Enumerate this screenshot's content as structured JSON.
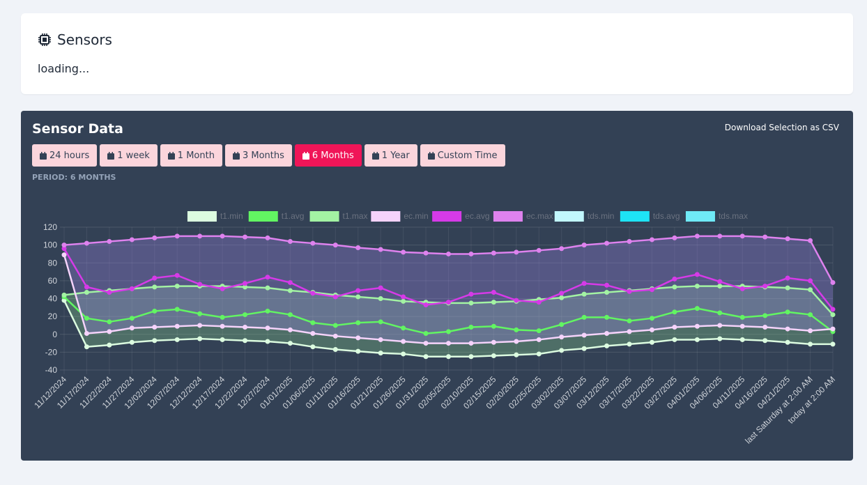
{
  "header": {
    "title": "Sensors",
    "status": "loading..."
  },
  "panel": {
    "title": "Sensor Data",
    "download": "Download Selection as CSV",
    "buttons": [
      "24 hours",
      "1 week",
      "1 Month",
      "3 Months",
      "6 Months",
      "1 Year",
      "Custom Time"
    ],
    "active_button": 4,
    "period": "PERIOD: 6 MONTHS"
  },
  "chart_data": {
    "type": "line",
    "categories": [
      "11/12/2024",
      "11/17/2024",
      "11/22/2024",
      "11/27/2024",
      "12/02/2024",
      "12/07/2024",
      "12/12/2024",
      "12/17/2024",
      "12/22/2024",
      "12/27/2024",
      "01/01/2025",
      "01/06/2025",
      "01/11/2025",
      "01/16/2025",
      "01/21/2025",
      "01/26/2025",
      "01/31/2025",
      "02/05/2025",
      "02/10/2025",
      "02/15/2025",
      "02/20/2025",
      "02/25/2025",
      "03/02/2025",
      "03/07/2025",
      "03/12/2025",
      "03/17/2025",
      "03/22/2025",
      "03/27/2025",
      "04/01/2025",
      "04/06/2025",
      "04/11/2025",
      "04/16/2025",
      "04/21/2025",
      "last Saturday at 2:00 AM",
      "today at 2:00 AM"
    ],
    "series": [
      {
        "name": "t1.min",
        "color": "#dcfce0",
        "values": [
          38,
          -14,
          -12,
          -9,
          -7,
          -6,
          -5,
          -6,
          -7,
          -8,
          -10,
          -14,
          -17,
          -19,
          -21,
          -22,
          -25,
          -25,
          -25,
          -24,
          -23,
          -22,
          -18,
          -16,
          -13,
          -11,
          -9,
          -6,
          -6,
          -5,
          -6,
          -7,
          -9,
          -11,
          -11
        ]
      },
      {
        "name": "t1.avg",
        "color": "#62f562",
        "values": [
          42,
          18,
          14,
          18,
          26,
          28,
          23,
          19,
          22,
          26,
          22,
          13,
          10,
          13,
          14,
          7,
          1,
          3,
          8,
          9,
          5,
          4,
          11,
          19,
          19,
          15,
          18,
          25,
          29,
          24,
          19,
          21,
          25,
          22,
          3
        ]
      },
      {
        "name": "t1.max",
        "color": "#a3f3a3",
        "values": [
          44,
          47,
          49,
          51,
          53,
          54,
          54,
          54,
          53,
          52,
          49,
          47,
          44,
          42,
          40,
          37,
          36,
          35,
          35,
          36,
          37,
          39,
          41,
          45,
          47,
          49,
          51,
          53,
          54,
          54,
          54,
          53,
          52,
          50,
          22
        ]
      },
      {
        "name": "ec.min",
        "color": "#f5d3fb",
        "values": [
          89,
          1,
          3,
          7,
          8,
          9,
          10,
          9,
          8,
          7,
          5,
          1,
          -2,
          -4,
          -6,
          -8,
          -10,
          -10,
          -10,
          -9,
          -8,
          -6,
          -3,
          -1,
          1,
          3,
          5,
          8,
          9,
          10,
          9,
          8,
          6,
          4,
          6
        ]
      },
      {
        "name": "ec.avg",
        "color": "#d63ae8",
        "values": [
          96,
          53,
          47,
          51,
          63,
          66,
          56,
          51,
          57,
          64,
          58,
          46,
          42,
          49,
          52,
          42,
          33,
          36,
          45,
          47,
          38,
          36,
          46,
          57,
          55,
          48,
          50,
          62,
          67,
          59,
          51,
          54,
          63,
          60,
          28
        ]
      },
      {
        "name": "ec.max",
        "color": "#de82ee",
        "values": [
          100,
          102,
          104,
          106,
          108,
          110,
          110,
          110,
          109,
          108,
          104,
          102,
          100,
          97,
          95,
          92,
          91,
          90,
          90,
          91,
          92,
          94,
          96,
          100,
          102,
          104,
          106,
          108,
          110,
          110,
          110,
          109,
          107,
          105,
          58
        ]
      },
      {
        "name": "tds.min",
        "color": "#c2f7fd",
        "values": [
          null,
          null,
          null,
          null,
          null,
          null,
          null,
          null,
          null,
          null,
          null,
          null,
          null,
          null,
          null,
          null,
          null,
          null,
          null,
          null,
          null,
          null,
          null,
          null,
          null,
          null,
          null,
          null,
          null,
          null,
          null,
          null,
          null,
          null,
          null
        ]
      },
      {
        "name": "tds.avg",
        "color": "#1ee3f5",
        "values": [
          null,
          null,
          null,
          null,
          null,
          null,
          null,
          null,
          null,
          null,
          null,
          null,
          null,
          null,
          null,
          null,
          null,
          null,
          null,
          null,
          null,
          null,
          null,
          null,
          null,
          null,
          null,
          null,
          null,
          null,
          null,
          null,
          null,
          null,
          null
        ]
      },
      {
        "name": "tds.max",
        "color": "#6feaf7",
        "values": [
          null,
          null,
          null,
          null,
          null,
          null,
          null,
          null,
          null,
          null,
          null,
          null,
          null,
          null,
          null,
          null,
          null,
          null,
          null,
          null,
          null,
          null,
          null,
          null,
          null,
          null,
          null,
          null,
          null,
          null,
          null,
          null,
          null,
          null,
          null
        ]
      }
    ],
    "ylim": [
      -40,
      120
    ],
    "yticks": [
      -40,
      -20,
      0,
      20,
      40,
      60,
      80,
      100,
      120
    ],
    "grid": true,
    "legend": "top"
  }
}
